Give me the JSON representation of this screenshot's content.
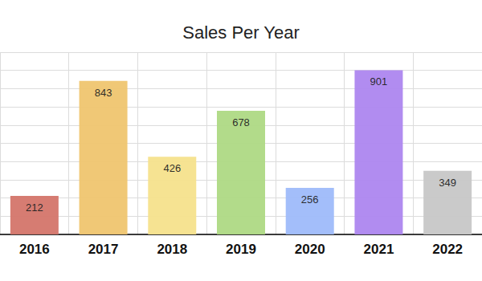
{
  "chart_data": {
    "type": "bar",
    "title": "Sales Per Year",
    "categories": [
      "2016",
      "2017",
      "2018",
      "2019",
      "2020",
      "2021",
      "2022"
    ],
    "values": [
      212,
      843,
      426,
      678,
      256,
      901,
      349
    ],
    "colors": [
      "#d4756a",
      "#efc56f",
      "#f6e18c",
      "#aed984",
      "#9ebbfa",
      "#ad86ef",
      "#c7c7c7"
    ],
    "ylim": [
      0,
      1000
    ],
    "yticks": [
      0,
      100,
      200,
      300,
      400,
      500,
      600,
      700,
      800,
      900,
      1000
    ],
    "grid": true,
    "data_labels": true,
    "tick_labels": "x"
  }
}
